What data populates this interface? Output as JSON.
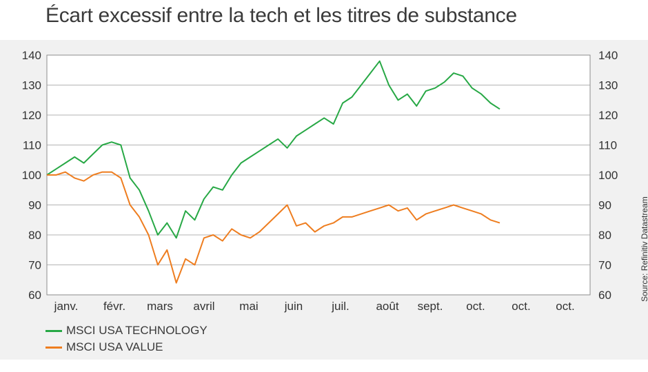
{
  "title": "Écart excessif entre la tech et les titres de substance",
  "source": "Source: Refinitiv Datastream",
  "colors": {
    "technology": "#27a845",
    "value": "#ee7d1f",
    "grid": "#9a9a9a",
    "background": "#f1f1f1"
  },
  "chart_data": {
    "type": "line",
    "title": "Écart excessif entre la tech et les titres de substance",
    "xlabel": "",
    "ylabel": "",
    "ylim": [
      60,
      140
    ],
    "yticks": [
      60,
      70,
      80,
      90,
      100,
      110,
      120,
      130,
      140
    ],
    "x_tick_labels": [
      "janv.",
      "févr.",
      "mars",
      "avril",
      "mai",
      "juin",
      "juil.",
      "août",
      "sept.",
      "oct.",
      "oct.",
      "oct."
    ],
    "grid": "horizontal",
    "dual_axis": true,
    "legend_position": "bottom-left",
    "x": [
      "02-01",
      "09-01",
      "16-01",
      "23-01",
      "30-01",
      "06-02",
      "13-02",
      "20-02",
      "27-02",
      "05-03",
      "12-03",
      "16-03",
      "19-03",
      "23-03",
      "26-03",
      "30-03",
      "06-04",
      "13-04",
      "20-04",
      "27-04",
      "04-05",
      "11-05",
      "18-05",
      "25-05",
      "01-06",
      "08-06",
      "15-06",
      "22-06",
      "29-06",
      "06-07",
      "13-07",
      "20-07",
      "27-07",
      "03-08",
      "10-08",
      "17-08",
      "24-08",
      "31-08",
      "02-09",
      "07-09",
      "14-09",
      "21-09",
      "28-09",
      "05-10",
      "12-10",
      "16-10",
      "19-10",
      "23-10",
      "26-10",
      "30-10"
    ],
    "series": [
      {
        "name": "MSCI USA TECHNOLOGY",
        "color": "#27a845",
        "values": [
          100,
          102,
          104,
          106,
          104,
          107,
          110,
          111,
          110,
          99,
          95,
          88,
          80,
          84,
          79,
          88,
          85,
          92,
          96,
          95,
          100,
          104,
          106,
          108,
          110,
          112,
          109,
          113,
          115,
          117,
          119,
          117,
          124,
          126,
          130,
          134,
          138,
          130,
          125,
          127,
          123,
          128,
          129,
          131,
          134,
          133,
          129,
          127,
          124,
          122
        ]
      },
      {
        "name": "MSCI USA VALUE",
        "color": "#ee7d1f",
        "values": [
          100,
          100,
          101,
          99,
          98,
          100,
          101,
          101,
          99,
          90,
          86,
          80,
          70,
          75,
          64,
          72,
          70,
          79,
          80,
          78,
          82,
          80,
          79,
          81,
          84,
          87,
          90,
          83,
          84,
          81,
          83,
          84,
          86,
          86,
          87,
          88,
          89,
          90,
          88,
          89,
          85,
          87,
          88,
          89,
          90,
          89,
          88,
          87,
          85,
          84
        ]
      }
    ]
  }
}
